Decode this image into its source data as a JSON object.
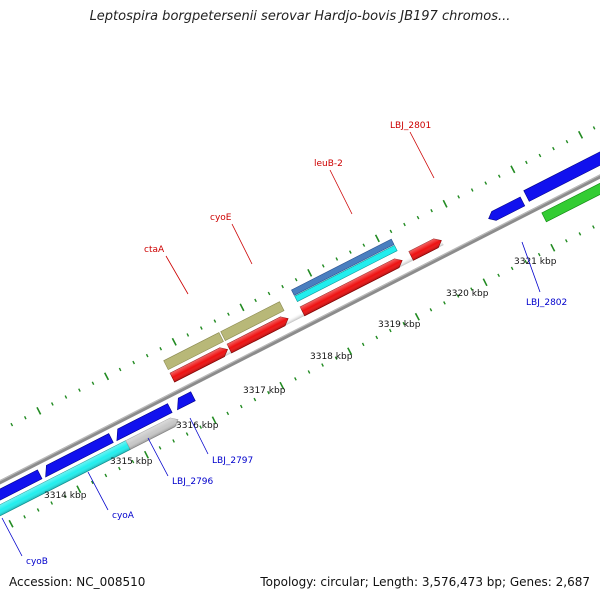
{
  "title": "Leptospira borgpetersenii serovar Hardjo-bovis JB197 chromos...",
  "footer": {
    "accession": "Accession: NC_008510",
    "summary": "Topology: circular; Length: 3,576,473 bp; Genes: 2,687"
  },
  "ruler": [
    {
      "label": "3314 kbp"
    },
    {
      "label": "3315 kbp"
    },
    {
      "label": "3316 kbp"
    },
    {
      "label": "3317 kbp"
    },
    {
      "label": "3318 kbp"
    },
    {
      "label": "3319 kbp"
    },
    {
      "label": "3320 kbp"
    },
    {
      "label": "3321 kbp"
    }
  ],
  "gene_labels": {
    "forward": [
      "ctaA",
      "cyoE",
      "leuB-2",
      "LBJ_2801"
    ],
    "reverse": [
      "cyoB",
      "cyoA",
      "LBJ_2796",
      "LBJ_2797",
      "LBJ_2802"
    ]
  },
  "colors": {
    "backbone": "#8c8c8c",
    "cds_forward": "#ee1111",
    "cds_reverse": "#1111ee",
    "gene_cyan": "#22eeee",
    "gene_khaki": "#b8b878",
    "gene_steel": "#4a7fbf",
    "gene_gray": "#c8c8c8",
    "gene_green": "#33cc33",
    "tick": "#228b22",
    "label_forward": "#cc0000",
    "label_reverse": "#0000cc"
  }
}
